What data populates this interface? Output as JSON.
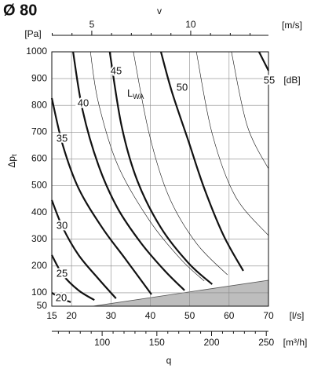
{
  "chart_data": {
    "type": "line",
    "title": "Ø 80",
    "top_axis": {
      "label": "v",
      "unit": "[m/s]",
      "xlim": [
        2.98,
        13.93
      ],
      "xticks": [
        5,
        10
      ],
      "minor_ticks": [
        3,
        4,
        6,
        7,
        8,
        9,
        11,
        12,
        13
      ]
    },
    "y_unit": "[Pa]",
    "y_label": {
      "text": "Δp",
      "sub": "t"
    },
    "ylim": [
      50,
      1000
    ],
    "yticks": [
      50,
      100,
      200,
      300,
      400,
      500,
      600,
      700,
      800,
      900,
      1000
    ],
    "xlim": [
      15,
      70
    ],
    "xticks": [
      15,
      20,
      30,
      40,
      50,
      60,
      70
    ],
    "x_unit": "[l/s]",
    "x2_axis": {
      "unit": "[m³/h]",
      "xlim": [
        54,
        252
      ],
      "xticks": [
        100,
        150,
        200,
        250
      ],
      "minor_ticks": [
        60,
        70,
        80,
        90,
        110,
        120,
        130,
        140,
        160,
        170,
        180,
        190,
        210,
        220,
        230,
        240
      ]
    },
    "x_label": "q",
    "curve_unit": "[dB]",
    "annotation": {
      "text": "L",
      "sub": "WA"
    },
    "grid": true,
    "series": [
      {
        "name": "20",
        "weight": "bold",
        "x": [
          15,
          17.4,
          19.8
        ],
        "values": [
          100,
          79,
          65
        ]
      },
      {
        "name": "25",
        "weight": "bold",
        "x": [
          15,
          17.8,
          21.8,
          25.8
        ],
        "values": [
          241,
          167,
          109,
          73
        ]
      },
      {
        "name": "30",
        "weight": "bold",
        "x": [
          15,
          17.8,
          21.8,
          26.8,
          31.3
        ],
        "values": [
          446,
          343,
          241,
          153,
          79
        ]
      },
      {
        "name": "35",
        "weight": "bold",
        "x": [
          15,
          17.8,
          21.8,
          27.8,
          33.7,
          40.3
        ],
        "values": [
          827,
          651,
          490,
          343,
          226,
          94
        ]
      },
      {
        "name": "40",
        "weight": "bold",
        "x": [
          20.4,
          22.8,
          26.8,
          31.7,
          37.7,
          43.7,
          48.7
        ],
        "values": [
          1000,
          783,
          578,
          416,
          285,
          182,
          109
        ]
      },
      {
        "name": "45",
        "weight": "bold",
        "x": [
          29.7,
          32.7,
          36.7,
          42.7,
          49.7,
          55.7
        ],
        "values": [
          1000,
          724,
          519,
          343,
          211,
          132
        ]
      },
      {
        "name": "50",
        "weight": "bold",
        "x": [
          42.7,
          45.5,
          49.7,
          53.7,
          58.6,
          63.6
        ],
        "values": [
          1000,
          850,
          666,
          490,
          314,
          182
        ]
      },
      {
        "name": "55",
        "weight": "bold",
        "x": [
          67.6,
          70
        ],
        "values": [
          1000,
          930
        ]
      },
      {
        "weight": "thin",
        "x": [
          24.8,
          26.8,
          31.7,
          39.7,
          47.7,
          53.7
        ],
        "values": [
          1000,
          812,
          578,
          372,
          226,
          144
        ]
      },
      {
        "weight": "thin",
        "x": [
          35.7,
          39.7,
          44.7,
          51.7,
          59.6
        ],
        "values": [
          1000,
          695,
          460,
          285,
          167
        ]
      },
      {
        "weight": "thin",
        "x": [
          51.7,
          55.7,
          61.6,
          70
        ],
        "values": [
          1000,
          695,
          460,
          314
        ]
      },
      {
        "weight": "thin",
        "x": [
          60.6,
          64.6,
          70
        ],
        "values": [
          1000,
          724,
          563
        ]
      }
    ],
    "shaded_region": {
      "color": "#bdbdbd",
      "x": [
        25.4,
        70,
        70
      ],
      "values": [
        50,
        147,
        50
      ]
    }
  }
}
